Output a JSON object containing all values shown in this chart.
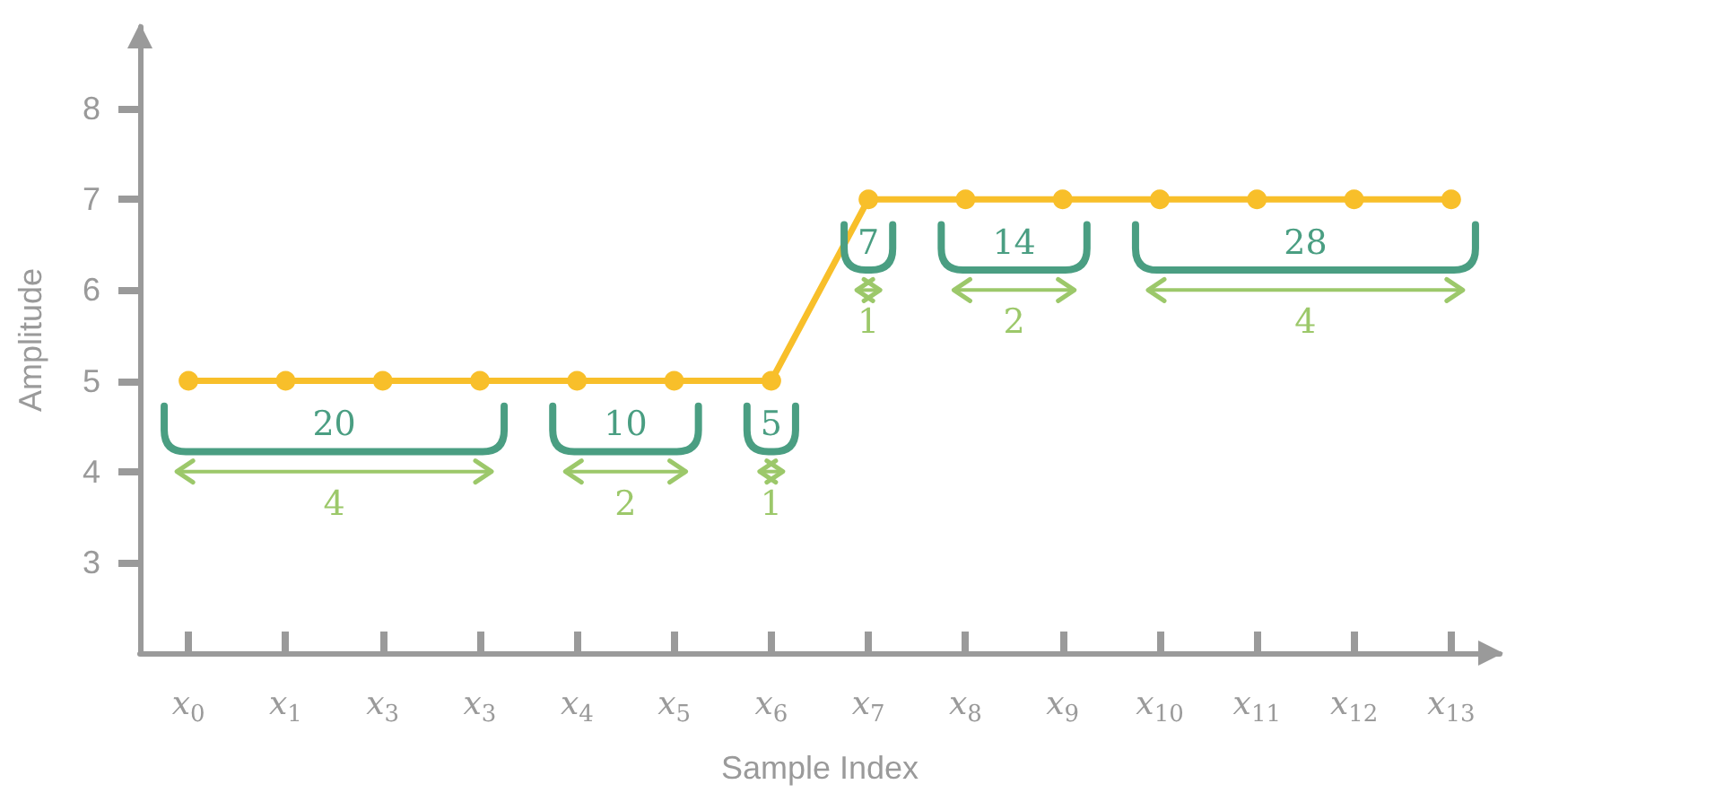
{
  "chart_data": {
    "type": "line",
    "xlabel": "Sample Index",
    "ylabel": "Amplitude",
    "categories": [
      "x$_{0}$",
      "x$_{1}$",
      "x$_{3}$",
      "x$_{3}$",
      "x$_{4}$",
      "x$_{5}$",
      "x$_{6}$",
      "x$_{7}$",
      "x$_{8}$",
      "x$_{9}$",
      "x$_{10}$",
      "x$_{11}$",
      "x$_{12}$",
      "x$_{13}$"
    ],
    "series": [
      {
        "color": "#f8bf2a",
        "values": [
          5,
          5,
          5,
          5,
          5,
          5,
          5,
          7,
          7,
          7,
          7,
          7,
          7,
          7
        ]
      }
    ],
    "ylim": [
      2,
      8.9
    ],
    "yticks": [
      3,
      4,
      5,
      6,
      7,
      8
    ],
    "grid": false,
    "marker": "circle",
    "annotations": [
      "20",
      "10",
      "5",
      "7",
      "14",
      "28",
      "4",
      "2",
      "1",
      "1",
      "2",
      "4"
    ]
  }
}
